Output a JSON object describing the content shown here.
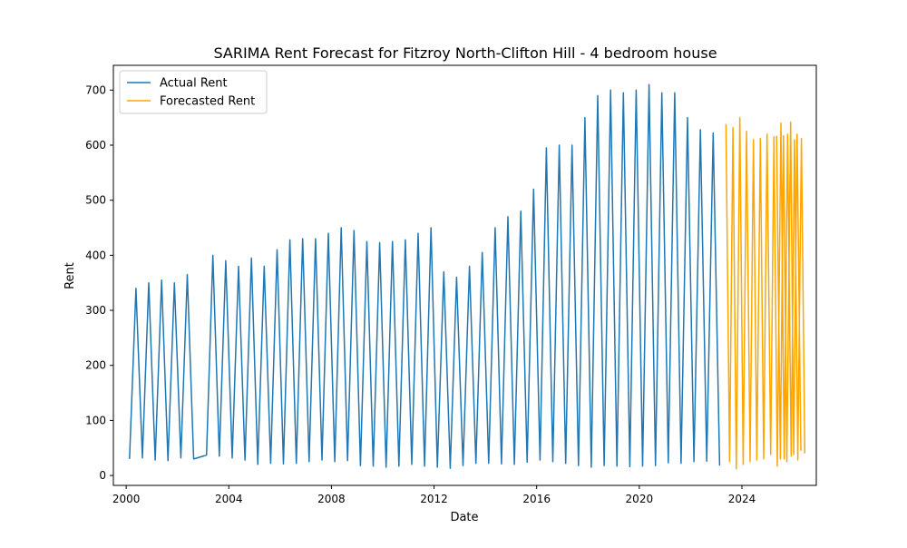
{
  "chart_data": {
    "type": "line",
    "title": "SARIMA Rent Forecast for Fitzroy North-Clifton Hill - 4 bedroom house",
    "xlabel": "Date",
    "ylabel": "Rent",
    "xlim": [
      1999.5,
      2026.9
    ],
    "ylim": [
      -18,
      745
    ],
    "x_ticks": [
      2000,
      2004,
      2008,
      2012,
      2016,
      2020,
      2024
    ],
    "x_tick_labels": [
      "2000",
      "2004",
      "2008",
      "2012",
      "2016",
      "2020",
      "2024"
    ],
    "y_ticks": [
      0,
      100,
      200,
      300,
      400,
      500,
      600,
      700
    ],
    "y_tick_labels": [
      "0",
      "100",
      "200",
      "300",
      "400",
      "500",
      "600",
      "700"
    ],
    "grid": false,
    "legend_position": "top-left",
    "series": [
      {
        "name": "Actual Rent",
        "color": "#1f77b4",
        "x": [
          2000.13,
          2000.38,
          2000.63,
          2000.88,
          2001.13,
          2001.38,
          2001.63,
          2001.88,
          2002.13,
          2002.38,
          2002.63,
          2003.13,
          2003.38,
          2003.63,
          2003.88,
          2004.13,
          2004.38,
          2004.63,
          2004.88,
          2005.13,
          2005.38,
          2005.63,
          2005.88,
          2006.13,
          2006.38,
          2006.63,
          2006.88,
          2007.13,
          2007.38,
          2007.63,
          2007.88,
          2008.13,
          2008.38,
          2008.63,
          2008.88,
          2009.13,
          2009.38,
          2009.63,
          2009.88,
          2010.13,
          2010.38,
          2010.63,
          2010.88,
          2011.13,
          2011.38,
          2011.63,
          2011.88,
          2012.13,
          2012.38,
          2012.63,
          2012.88,
          2013.13,
          2013.38,
          2013.63,
          2013.88,
          2014.13,
          2014.38,
          2014.63,
          2014.88,
          2015.13,
          2015.38,
          2015.63,
          2015.88,
          2016.13,
          2016.38,
          2016.63,
          2016.88,
          2017.13,
          2017.38,
          2017.63,
          2017.88,
          2018.13,
          2018.38,
          2018.63,
          2018.88,
          2019.13,
          2019.38,
          2019.63,
          2019.88,
          2020.13,
          2020.38,
          2020.63,
          2020.88,
          2021.13,
          2021.38,
          2021.63,
          2021.88,
          2022.13,
          2022.38,
          2022.63,
          2022.88,
          2023.13
        ],
        "y": [
          30,
          340,
          32,
          350,
          28,
          355,
          27,
          350,
          32,
          365,
          30,
          37,
          400,
          35,
          390,
          32,
          380,
          28,
          395,
          20,
          380,
          22,
          410,
          21,
          428,
          22,
          430,
          25,
          430,
          28,
          440,
          25,
          450,
          27,
          445,
          18,
          425,
          17,
          423,
          15,
          425,
          17,
          428,
          20,
          440,
          17,
          450,
          15,
          370,
          13,
          360,
          18,
          380,
          22,
          405,
          22,
          450,
          21,
          470,
          20,
          480,
          24,
          520,
          28,
          595,
          25,
          600,
          22,
          600,
          18,
          650,
          15,
          690,
          18,
          700,
          17,
          695,
          16,
          700,
          17,
          710,
          18,
          695,
          23,
          695,
          22,
          650,
          25,
          628,
          26,
          622,
          18
        ]
      },
      {
        "name": "Forecasted Rent",
        "color": "#ffa500",
        "x": [
          2023.38,
          2023.52,
          2023.65,
          2023.78,
          2023.92,
          2024.05,
          2024.18,
          2024.32,
          2024.45,
          2024.58,
          2024.72,
          2024.85,
          2024.98,
          2025.12,
          2025.25,
          2025.38,
          2025.52,
          2025.65,
          2025.78,
          2025.92,
          2026.05,
          2026.18,
          2026.32,
          2026.45
        ],
        "y": [
          638,
          25,
          632,
          12,
          650,
          20,
          625,
          25,
          610,
          28,
          612,
          30,
          620,
          38,
          615,
          17,
          640,
          30,
          620,
          35,
          610,
          28,
          612,
          40
        ],
        "x2": [
          2025.35,
          2025.5,
          2025.62,
          2025.75,
          2025.9,
          2026.02,
          2026.15,
          2026.3
        ],
        "y2": [
          617,
          30,
          617,
          25,
          642,
          38,
          620,
          45
        ]
      }
    ]
  }
}
